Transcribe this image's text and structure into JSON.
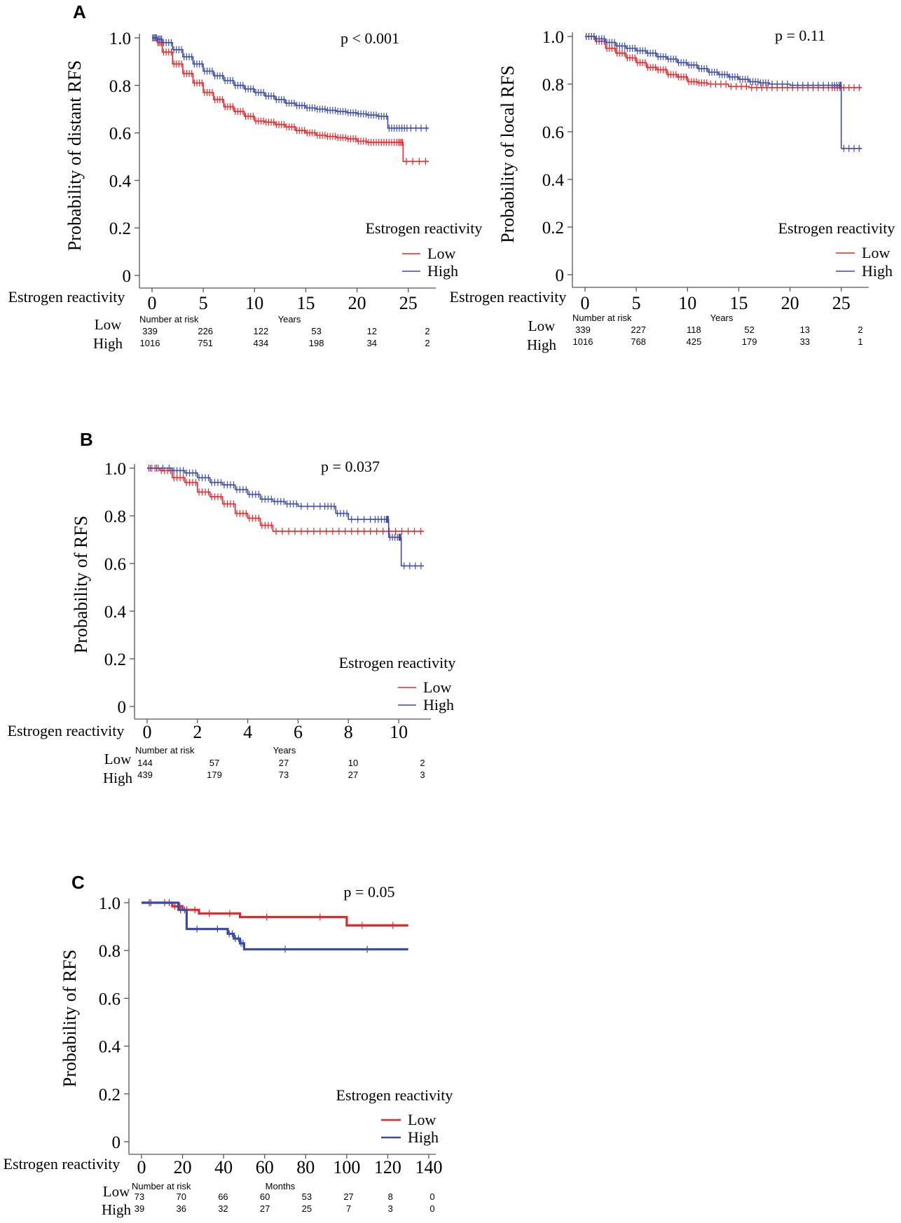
{
  "figure": {
    "panel_letters": [
      "A",
      "B",
      "C"
    ]
  },
  "chart_data": [
    {
      "type": "line",
      "panel": "A",
      "subtype": "kaplan-meier",
      "ylabel": "Probability of distant RFS",
      "xlabel": "Years",
      "annotation": "p < 0.001",
      "legend_title": "Estrogen reactivity",
      "legend_position": "bottom-right",
      "xlim": [
        0,
        27
      ],
      "ylim": [
        0,
        1.0
      ],
      "x_ticks": [
        0,
        5,
        10,
        15,
        20,
        25
      ],
      "y_ticks": [
        0,
        0.2,
        0.4,
        0.6,
        0.8,
        1.0
      ],
      "y_tick_labels": [
        "0",
        "0.2",
        "0.4",
        "0.6",
        "0.8",
        "1.0"
      ],
      "series": [
        {
          "name": "Low",
          "color": "#e8262a",
          "x": [
            0,
            0.5,
            1,
            2,
            3,
            4,
            5,
            6,
            7,
            8,
            9,
            10,
            11,
            12,
            13,
            14,
            15,
            16,
            17,
            18,
            19,
            20,
            21,
            22,
            23,
            24,
            24.5,
            27
          ],
          "y": [
            1.0,
            0.98,
            0.94,
            0.89,
            0.85,
            0.81,
            0.77,
            0.74,
            0.71,
            0.69,
            0.67,
            0.65,
            0.645,
            0.635,
            0.625,
            0.61,
            0.6,
            0.59,
            0.585,
            0.58,
            0.575,
            0.565,
            0.56,
            0.56,
            0.56,
            0.56,
            0.48,
            0.48
          ]
        },
        {
          "name": "High",
          "color": "#3b4ba7",
          "x": [
            0,
            0.5,
            1,
            2,
            3,
            4,
            5,
            6,
            7,
            8,
            9,
            10,
            11,
            12,
            13,
            14,
            15,
            16,
            17,
            18,
            19,
            20,
            21,
            22,
            23,
            24,
            25,
            27
          ],
          "y": [
            1.0,
            0.995,
            0.98,
            0.95,
            0.92,
            0.89,
            0.86,
            0.84,
            0.82,
            0.8,
            0.785,
            0.77,
            0.755,
            0.74,
            0.725,
            0.715,
            0.705,
            0.7,
            0.695,
            0.69,
            0.685,
            0.68,
            0.675,
            0.67,
            0.62,
            0.62,
            0.62,
            0.62
          ]
        }
      ],
      "risk_table": {
        "title": "Number at risk",
        "row_label": "Estrogen reactivity",
        "rows": [
          {
            "name": "Low",
            "values": [
              "339",
              "226",
              "122",
              "53",
              "12",
              "2"
            ]
          },
          {
            "name": "High",
            "values": [
              "1016",
              "751",
              "434",
              "198",
              "34",
              "2"
            ]
          }
        ]
      }
    },
    {
      "type": "line",
      "panel": "A",
      "subtype": "kaplan-meier",
      "ylabel": "Probability of local RFS",
      "xlabel": "Years",
      "annotation": "p = 0.11",
      "legend_title": "Estrogen reactivity",
      "legend_position": "bottom-right",
      "xlim": [
        0,
        27
      ],
      "ylim": [
        0,
        1.0
      ],
      "x_ticks": [
        0,
        5,
        10,
        15,
        20,
        25
      ],
      "y_ticks": [
        0,
        0.2,
        0.4,
        0.6,
        0.8,
        1.0
      ],
      "y_tick_labels": [
        "0",
        "0.2",
        "0.4",
        "0.6",
        "0.8",
        "1.0"
      ],
      "series": [
        {
          "name": "Low",
          "color": "#e8262a",
          "x": [
            0,
            1,
            2,
            3,
            4,
            5,
            6,
            7,
            8,
            9,
            10,
            11,
            12,
            14,
            16,
            18,
            20,
            22,
            24,
            25,
            27
          ],
          "y": [
            1.0,
            0.98,
            0.95,
            0.93,
            0.91,
            0.89,
            0.87,
            0.86,
            0.84,
            0.83,
            0.81,
            0.805,
            0.8,
            0.79,
            0.785,
            0.785,
            0.785,
            0.785,
            0.785,
            0.785,
            0.785
          ]
        },
        {
          "name": "High",
          "color": "#3b4ba7",
          "x": [
            0,
            1,
            2,
            3,
            4,
            5,
            6,
            7,
            8,
            9,
            10,
            11,
            12,
            13,
            14,
            15,
            16,
            17,
            18,
            20,
            22,
            24,
            24.9,
            25,
            27
          ],
          "y": [
            1.0,
            0.99,
            0.975,
            0.96,
            0.95,
            0.94,
            0.93,
            0.915,
            0.905,
            0.89,
            0.88,
            0.865,
            0.85,
            0.84,
            0.83,
            0.82,
            0.81,
            0.805,
            0.8,
            0.795,
            0.795,
            0.795,
            0.795,
            0.53,
            0.53
          ]
        }
      ],
      "risk_table": {
        "title": "Number at risk",
        "row_label": "Estrogen reactivity",
        "rows": [
          {
            "name": "Low",
            "values": [
              "339",
              "227",
              "118",
              "52",
              "13",
              "2"
            ]
          },
          {
            "name": "High",
            "values": [
              "1016",
              "768",
              "425",
              "179",
              "33",
              "1"
            ]
          }
        ]
      }
    },
    {
      "type": "line",
      "panel": "B",
      "subtype": "kaplan-meier",
      "ylabel": "Probability of RFS",
      "xlabel": "Years",
      "annotation": "p = 0.037",
      "legend_title": "Estrogen reactivity",
      "legend_position": "bottom-right",
      "xlim": [
        0,
        11
      ],
      "ylim": [
        0,
        1.0
      ],
      "x_ticks": [
        0,
        2,
        4,
        6,
        8,
        10
      ],
      "y_ticks": [
        0,
        0.2,
        0.4,
        0.6,
        0.8,
        1.0
      ],
      "y_tick_labels": [
        "0",
        "0.2",
        "0.4",
        "0.6",
        "0.8",
        "1.0"
      ],
      "series": [
        {
          "name": "Low",
          "color": "#e8262a",
          "x": [
            0,
            0.5,
            1,
            1.5,
            2,
            2.5,
            3,
            3.5,
            4,
            4.5,
            5,
            6,
            7,
            8,
            9,
            10,
            11
          ],
          "y": [
            1.0,
            0.99,
            0.96,
            0.94,
            0.9,
            0.88,
            0.85,
            0.81,
            0.79,
            0.76,
            0.735,
            0.735,
            0.735,
            0.735,
            0.735,
            0.735,
            0.735
          ]
        },
        {
          "name": "High",
          "color": "#3b4ba7",
          "x": [
            0,
            1,
            1.5,
            2,
            2.5,
            3,
            3.5,
            4,
            4.5,
            5,
            5.5,
            6,
            7,
            7.5,
            8,
            9,
            9.5,
            9.6,
            10,
            10.1,
            11
          ],
          "y": [
            1.0,
            0.99,
            0.98,
            0.96,
            0.94,
            0.93,
            0.91,
            0.89,
            0.87,
            0.86,
            0.85,
            0.84,
            0.84,
            0.81,
            0.785,
            0.785,
            0.785,
            0.71,
            0.71,
            0.59,
            0.59
          ]
        }
      ],
      "risk_table": {
        "title": "Number at risk",
        "row_label": "Estrogen reactivity",
        "rows": [
          {
            "name": "Low",
            "values": [
              "144",
              "57",
              "27",
              "10",
              "2"
            ]
          },
          {
            "name": "High",
            "values": [
              "439",
              "179",
              "73",
              "27",
              "3"
            ]
          }
        ]
      }
    },
    {
      "type": "line",
      "panel": "C",
      "subtype": "kaplan-meier",
      "ylabel": "Probability of RFS",
      "xlabel": "Months",
      "annotation": "p = 0.05",
      "legend_title": "Estrogen reactivity",
      "legend_position": "bottom-right",
      "xlim": [
        0,
        140
      ],
      "ylim": [
        0,
        1.0
      ],
      "x_ticks": [
        0,
        20,
        40,
        60,
        80,
        100,
        120,
        140
      ],
      "y_ticks": [
        0,
        0.2,
        0.4,
        0.6,
        0.8,
        1.0
      ],
      "y_tick_labels": [
        "0",
        "0.2",
        "0.4",
        "0.6",
        "0.8",
        "1.0"
      ],
      "series": [
        {
          "name": "Low",
          "color": "#e8262a",
          "x": [
            0,
            15,
            20,
            28,
            48,
            100,
            130
          ],
          "y": [
            1.0,
            0.985,
            0.97,
            0.955,
            0.94,
            0.905,
            0.905
          ]
        },
        {
          "name": "High",
          "color": "#3b4ba7",
          "x": [
            0,
            18,
            22,
            42,
            45,
            48,
            50,
            130
          ],
          "y": [
            1.0,
            0.97,
            0.89,
            0.87,
            0.85,
            0.83,
            0.805,
            0.805
          ]
        }
      ],
      "risk_table": {
        "title": "Number at risk",
        "row_label": "Estrogen reactivity",
        "rows": [
          {
            "name": "Low",
            "values": [
              "73",
              "70",
              "66",
              "60",
              "53",
              "27",
              "8",
              "0"
            ]
          },
          {
            "name": "High",
            "values": [
              "39",
              "36",
              "32",
              "27",
              "25",
              "7",
              "3",
              "0"
            ]
          }
        ]
      }
    }
  ]
}
